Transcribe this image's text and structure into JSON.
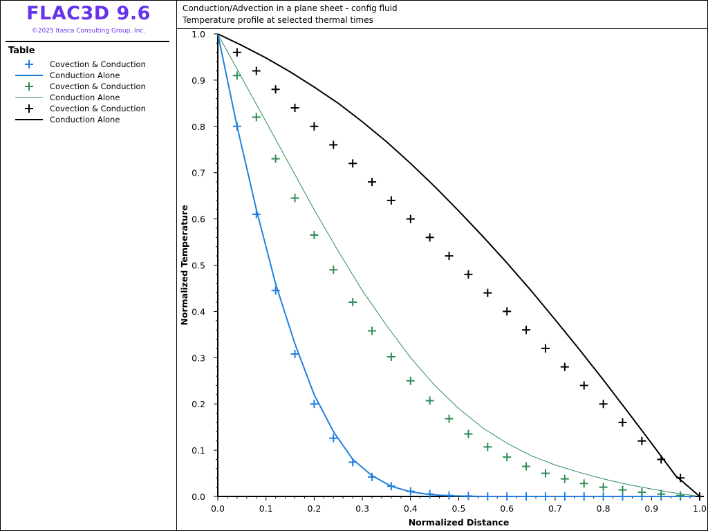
{
  "app": {
    "title": "FLAC3D 9.6",
    "copyright": "©2025 Itasca Consulting Group, Inc.",
    "brand_color": "#6633ee"
  },
  "legend": {
    "title": "Table",
    "items": [
      {
        "label": "Covection & Conduction",
        "symbol": "plus",
        "color": "#1f7fe0"
      },
      {
        "label": "Conduction Alone",
        "symbol": "line",
        "color": "#1f7fe0"
      },
      {
        "label": "Covection & Conduction",
        "symbol": "plus",
        "color": "#2e8b57"
      },
      {
        "label": "Conduction Alone",
        "symbol": "line",
        "color": "#2e8b57"
      },
      {
        "label": "Covection & Conduction",
        "symbol": "plus",
        "color": "#000000"
      },
      {
        "label": "Conduction Alone",
        "symbol": "line",
        "color": "#000000"
      }
    ]
  },
  "plot_header": {
    "line1": "Conduction/Advection in a plane sheet - config fluid",
    "line2": "Temperature profile at selected thermal times"
  },
  "chart_data": {
    "type": "line",
    "xlabel": "Normalized Distance",
    "ylabel": "Normalized Temperature",
    "xlim": [
      0,
      1
    ],
    "ylim": [
      0,
      1
    ],
    "xticks": [
      "0.0",
      "0.1",
      "0.2",
      "0.3",
      "0.4",
      "0.5",
      "0.6",
      "0.7",
      "0.8",
      "0.9",
      "1.0"
    ],
    "yticks": [
      "0.0",
      "0.1",
      "0.2",
      "0.3",
      "0.4",
      "0.5",
      "0.6",
      "0.7",
      "0.8",
      "0.9",
      "1.0"
    ],
    "grid": false,
    "series": [
      {
        "name": "Covection & Conduction",
        "kind": "scatter",
        "color": "#1f7fe0",
        "x": [
          0.04,
          0.08,
          0.12,
          0.16,
          0.2,
          0.24,
          0.28,
          0.32,
          0.36,
          0.4,
          0.44,
          0.48,
          0.52,
          0.56,
          0.6,
          0.64,
          0.68,
          0.72,
          0.76,
          0.8,
          0.84,
          0.88,
          0.92,
          0.96,
          1.0
        ],
        "y": [
          0.8,
          0.61,
          0.445,
          0.308,
          0.2,
          0.126,
          0.074,
          0.042,
          0.022,
          0.011,
          0.005,
          0.002,
          0.001,
          0,
          0,
          0,
          0,
          0,
          0,
          0,
          0,
          0,
          0,
          0,
          0
        ]
      },
      {
        "name": "Conduction Alone",
        "kind": "line",
        "color": "#1f7fe0",
        "x": [
          0,
          0.04,
          0.08,
          0.12,
          0.16,
          0.2,
          0.24,
          0.28,
          0.32,
          0.36,
          0.4,
          0.44,
          0.48,
          0.52,
          0.56,
          0.6,
          0.7,
          0.8,
          0.9,
          1.0
        ],
        "y": [
          1.0,
          0.8,
          0.62,
          0.46,
          0.33,
          0.22,
          0.14,
          0.08,
          0.045,
          0.022,
          0.01,
          0.004,
          0.0015,
          0.0005,
          0,
          0,
          0,
          0,
          0,
          0
        ]
      },
      {
        "name": "Covection & Conduction",
        "kind": "scatter",
        "color": "#2e8b57",
        "x": [
          0.04,
          0.08,
          0.12,
          0.16,
          0.2,
          0.24,
          0.28,
          0.32,
          0.36,
          0.4,
          0.44,
          0.48,
          0.52,
          0.56,
          0.6,
          0.64,
          0.68,
          0.72,
          0.76,
          0.8,
          0.84,
          0.88,
          0.92,
          0.96,
          1.0
        ],
        "y": [
          0.91,
          0.82,
          0.73,
          0.645,
          0.565,
          0.49,
          0.42,
          0.358,
          0.302,
          0.25,
          0.207,
          0.168,
          0.135,
          0.107,
          0.085,
          0.065,
          0.05,
          0.038,
          0.028,
          0.02,
          0.014,
          0.009,
          0.005,
          0.002,
          0
        ]
      },
      {
        "name": "Conduction Alone",
        "kind": "line",
        "color": "#2e8b57",
        "x": [
          0,
          0.05,
          0.1,
          0.15,
          0.2,
          0.25,
          0.3,
          0.35,
          0.4,
          0.45,
          0.5,
          0.55,
          0.6,
          0.65,
          0.7,
          0.75,
          0.8,
          0.85,
          0.9,
          0.95,
          1.0
        ],
        "y": [
          1.0,
          0.905,
          0.81,
          0.715,
          0.62,
          0.53,
          0.445,
          0.37,
          0.3,
          0.24,
          0.19,
          0.148,
          0.115,
          0.088,
          0.068,
          0.052,
          0.038,
          0.026,
          0.016,
          0.007,
          0
        ]
      },
      {
        "name": "Covection & Conduction",
        "kind": "scatter",
        "color": "#000000",
        "x": [
          0.04,
          0.08,
          0.12,
          0.16,
          0.2,
          0.24,
          0.28,
          0.32,
          0.36,
          0.4,
          0.44,
          0.48,
          0.52,
          0.56,
          0.6,
          0.64,
          0.68,
          0.72,
          0.76,
          0.8,
          0.84,
          0.88,
          0.92,
          0.96,
          1.0
        ],
        "y": [
          0.96,
          0.92,
          0.88,
          0.84,
          0.8,
          0.76,
          0.72,
          0.68,
          0.64,
          0.6,
          0.56,
          0.52,
          0.48,
          0.44,
          0.4,
          0.36,
          0.32,
          0.28,
          0.24,
          0.2,
          0.16,
          0.12,
          0.08,
          0.04,
          0
        ]
      },
      {
        "name": "Conduction Alone",
        "kind": "line",
        "color": "#000000",
        "x": [
          0,
          0.05,
          0.1,
          0.15,
          0.2,
          0.25,
          0.3,
          0.35,
          0.4,
          0.45,
          0.5,
          0.55,
          0.6,
          0.65,
          0.7,
          0.75,
          0.8,
          0.85,
          0.9,
          0.95,
          1.0
        ],
        "y": [
          1.0,
          0.975,
          0.948,
          0.918,
          0.885,
          0.85,
          0.81,
          0.767,
          0.72,
          0.67,
          0.617,
          0.562,
          0.505,
          0.445,
          0.382,
          0.318,
          0.252,
          0.184,
          0.115,
          0.045,
          0
        ]
      }
    ]
  }
}
